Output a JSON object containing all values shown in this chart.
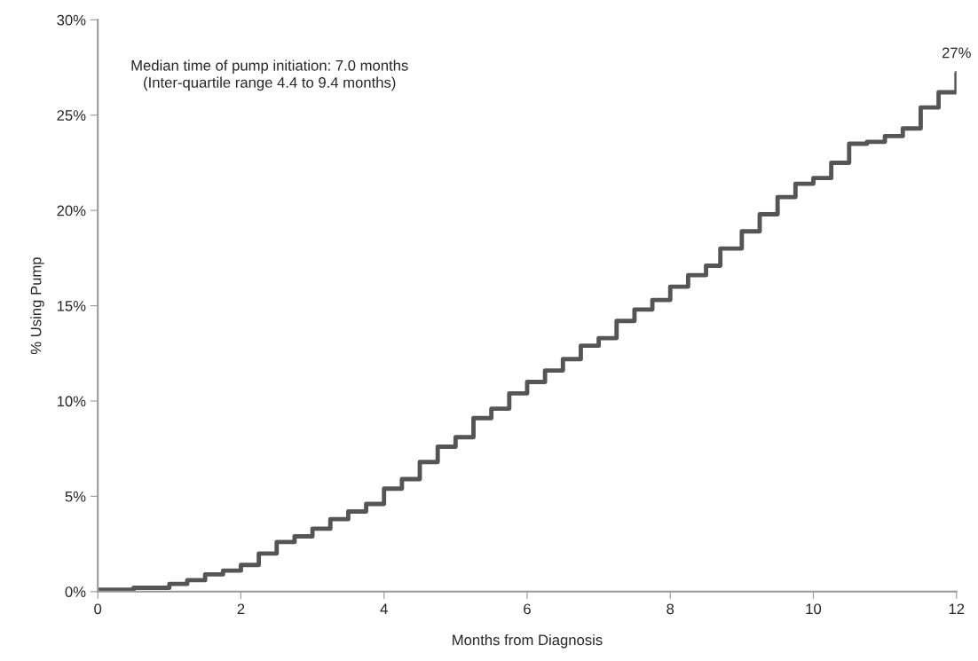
{
  "chart_data": {
    "type": "step",
    "xlabel": "Months from Diagnosis",
    "ylabel": "% Using Pump",
    "x": [
      0,
      0.5,
      1,
      1.25,
      1.5,
      1.75,
      2,
      2.25,
      2.5,
      2.75,
      3,
      3.25,
      3.5,
      3.75,
      4,
      4.25,
      4.5,
      4.75,
      5,
      5.25,
      5.5,
      5.75,
      6,
      6.25,
      6.5,
      6.75,
      7,
      7.25,
      7.5,
      7.75,
      8,
      8.25,
      8.5,
      8.7,
      9,
      9.25,
      9.5,
      9.75,
      10,
      10.25,
      10.5,
      10.75,
      11,
      11.25,
      11.5,
      11.75,
      12
    ],
    "series": [
      {
        "color": "#555555",
        "values": [
          0.1,
          0.2,
          0.4,
          0.6,
          0.9,
          1.1,
          1.4,
          2.0,
          2.6,
          2.9,
          3.3,
          3.8,
          4.2,
          4.6,
          5.4,
          5.9,
          6.8,
          7.6,
          8.1,
          9.1,
          9.6,
          10.4,
          11.0,
          11.6,
          12.2,
          12.9,
          13.3,
          14.2,
          14.8,
          15.3,
          16.0,
          16.6,
          17.1,
          18.0,
          18.9,
          19.8,
          20.7,
          21.4,
          21.7,
          22.5,
          23.5,
          23.6,
          23.9,
          24.3,
          25.4,
          26.2,
          27.2
        ]
      }
    ],
    "xlim": [
      0,
      12
    ],
    "xticks": [
      0,
      2,
      4,
      6,
      8,
      10,
      12
    ],
    "ylim": [
      0,
      30
    ],
    "yticks": [
      {
        "value": 0,
        "label": "0%"
      },
      {
        "value": 5,
        "label": "5%"
      },
      {
        "value": 10,
        "label": "10%"
      },
      {
        "value": 15,
        "label": "15%"
      },
      {
        "value": 20,
        "label": "20%"
      },
      {
        "value": 25,
        "label": "25%"
      },
      {
        "value": 30,
        "label": "30%"
      }
    ],
    "grid": false,
    "line_style": "solid",
    "annotations": [
      "Median time of pump initiation: 7.0 months\n(Inter-quartile range 4.4 to 9.4 months)",
      {
        "text": "27%",
        "x": 12,
        "y": 27.2
      }
    ]
  }
}
